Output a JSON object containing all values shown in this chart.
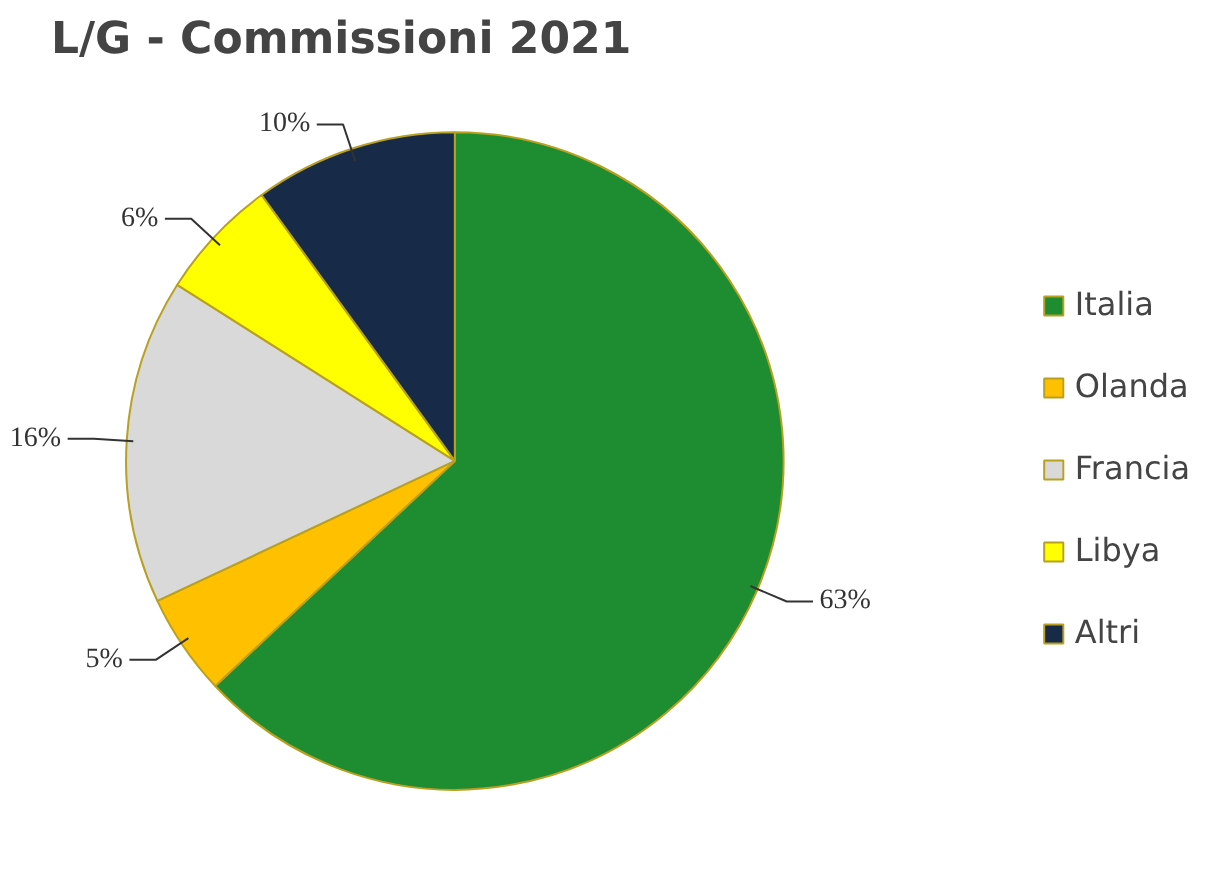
{
  "chart_data": {
    "type": "pie",
    "title": "L/G - Commissioni 2021",
    "categories": [
      "Italia",
      "Olanda",
      "Francia",
      "Libya",
      "Altri"
    ],
    "values": [
      63,
      5,
      16,
      6,
      10
    ],
    "colors": [
      "#1e8c30",
      "#ffc000",
      "#d9d9d9",
      "#ffff00",
      "#172a48"
    ],
    "value_labels": [
      "63%",
      "5%",
      "16%",
      "6%",
      "10%"
    ],
    "legend": "right"
  }
}
